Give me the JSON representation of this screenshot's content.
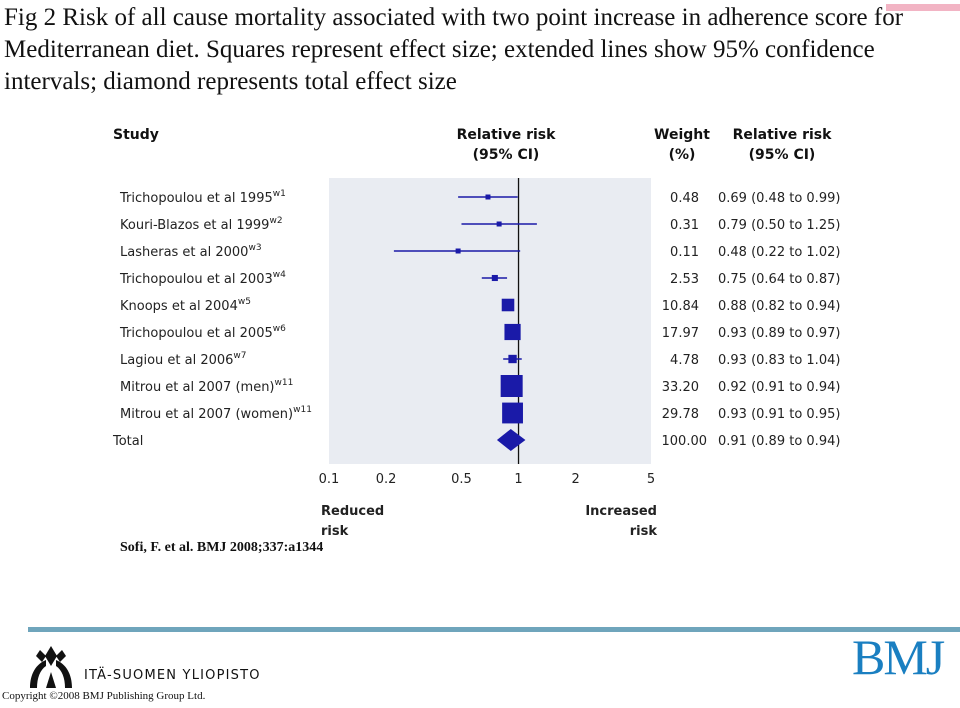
{
  "page": {
    "title": "Fig 2 Risk of all cause mortality associated with two point increase in adherence score for Mediterranean diet. Squares represent effect size; extended lines show 95% confidence intervals; diamond represents total effect size",
    "source": "Sofi, F. et al. BMJ 2008;337:a1344",
    "institution": "ITÄ-SUOMEN YLIOPISTO",
    "publisher_logo": "BMJ",
    "copyright": "Copyright ©2008 BMJ Publishing Group Ltd."
  },
  "colors": {
    "accent": "#1a1aa8",
    "panel": "#e9ecf2",
    "band": "#6fa5bc",
    "pink": "#f2b4c4",
    "logo": "#1a7fc1"
  },
  "chart_data": {
    "type": "forest",
    "headers": {
      "study": "Study",
      "rr_line1": "Relative risk",
      "rr_line2": "(95% CI)",
      "weight_line1": "Weight",
      "weight_line2": "(%)",
      "rr_col_line1": "Relative risk",
      "rr_col_line2": "(95% CI)"
    },
    "x_scale": "log",
    "xlim": [
      0.1,
      5
    ],
    "x_ticks": [
      0.1,
      0.2,
      0.5,
      1,
      2,
      5
    ],
    "x_tick_labels": [
      "0.1",
      "0.2",
      "0.5",
      "1",
      "2",
      "5"
    ],
    "reference_line": 1,
    "left_label": "Reduced risk",
    "right_label": "Increased risk",
    "studies": [
      {
        "name": "Trichopoulou et al 1995",
        "ref": "w1",
        "rr": 0.69,
        "lo": 0.48,
        "hi": 0.99,
        "weight": 0.48,
        "weight_text": "0.48",
        "ci_text": "0.69 (0.48 to 0.99)"
      },
      {
        "name": "Kouri-Blazos et al 1999",
        "ref": "w2",
        "rr": 0.79,
        "lo": 0.5,
        "hi": 1.25,
        "weight": 0.31,
        "weight_text": "0.31",
        "ci_text": "0.79 (0.50 to 1.25)"
      },
      {
        "name": "Lasheras et al 2000",
        "ref": "w3",
        "rr": 0.48,
        "lo": 0.22,
        "hi": 1.02,
        "weight": 0.11,
        "weight_text": "0.11",
        "ci_text": "0.48 (0.22 to 1.02)"
      },
      {
        "name": "Trichopoulou et al 2003",
        "ref": "w4",
        "rr": 0.75,
        "lo": 0.64,
        "hi": 0.87,
        "weight": 2.53,
        "weight_text": "2.53",
        "ci_text": "0.75 (0.64 to 0.87)"
      },
      {
        "name": "Knoops et al 2004",
        "ref": "w5",
        "rr": 0.88,
        "lo": 0.82,
        "hi": 0.94,
        "weight": 10.84,
        "weight_text": "10.84",
        "ci_text": "0.88 (0.82 to 0.94)"
      },
      {
        "name": "Trichopoulou et al 2005",
        "ref": "w6",
        "rr": 0.93,
        "lo": 0.89,
        "hi": 0.97,
        "weight": 17.97,
        "weight_text": "17.97",
        "ci_text": "0.93 (0.89 to 0.97)"
      },
      {
        "name": "Lagiou et al 2006",
        "ref": "w7",
        "rr": 0.93,
        "lo": 0.83,
        "hi": 1.04,
        "weight": 4.78,
        "weight_text": "4.78",
        "ci_text": "0.93 (0.83 to 1.04)"
      },
      {
        "name": "Mitrou et al 2007 (men)",
        "ref": "w11",
        "rr": 0.92,
        "lo": 0.91,
        "hi": 0.94,
        "weight": 33.2,
        "weight_text": "33.20",
        "ci_text": "0.92 (0.91 to 0.94)"
      },
      {
        "name": "Mitrou et al 2007 (women)",
        "ref": "w11",
        "rr": 0.93,
        "lo": 0.91,
        "hi": 0.95,
        "weight": 29.78,
        "weight_text": "29.78",
        "ci_text": "0.93 (0.91 to 0.95)"
      }
    ],
    "total": {
      "name": "Total",
      "rr": 0.91,
      "lo": 0.89,
      "hi": 0.94,
      "weight_text": "100.00",
      "ci_text": "0.91 (0.89 to 0.94)"
    }
  }
}
